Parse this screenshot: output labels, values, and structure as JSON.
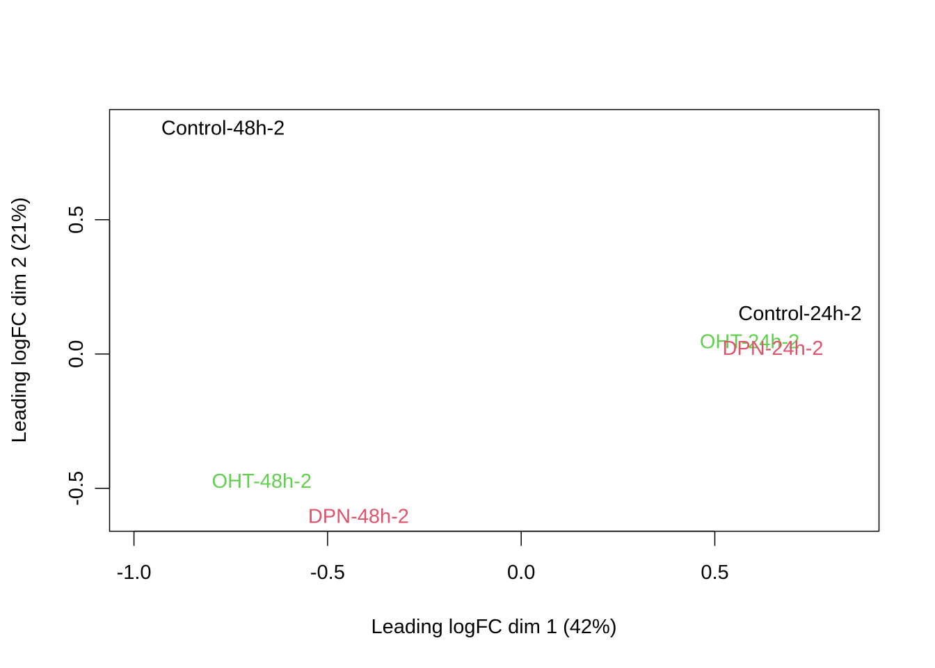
{
  "chart_data": {
    "type": "scatter",
    "xlabel": "Leading logFC dim 1 (42%)",
    "ylabel": "Leading logFC dim 2 (21%)",
    "xlim": [
      -1.063,
      0.924
    ],
    "ylim": [
      -0.66,
      0.91
    ],
    "xticks": [
      -1.0,
      -0.5,
      0.0,
      0.5
    ],
    "xtick_labels": [
      "-1.0",
      "-0.5",
      "0.0",
      "0.5"
    ],
    "yticks": [
      -0.5,
      0.0,
      0.5
    ],
    "ytick_labels": [
      "-0.5",
      "0.0",
      "0.5"
    ],
    "grid": false,
    "points": [
      {
        "label": "Control-48h-2",
        "x": -0.77,
        "y": 0.84,
        "color": "#000000"
      },
      {
        "label": "Control-24h-2",
        "x": 0.72,
        "y": 0.15,
        "color": "#000000"
      },
      {
        "label": "OHT-24h-2",
        "x": 0.59,
        "y": 0.045,
        "color": "#61D04F"
      },
      {
        "label": "DPN-24h-2",
        "x": 0.65,
        "y": 0.02,
        "color": "#DF536B"
      },
      {
        "label": "OHT-48h-2",
        "x": -0.67,
        "y": -0.475,
        "color": "#61D04F"
      },
      {
        "label": "DPN-48h-2",
        "x": -0.42,
        "y": -0.605,
        "color": "#DF536B"
      }
    ]
  }
}
